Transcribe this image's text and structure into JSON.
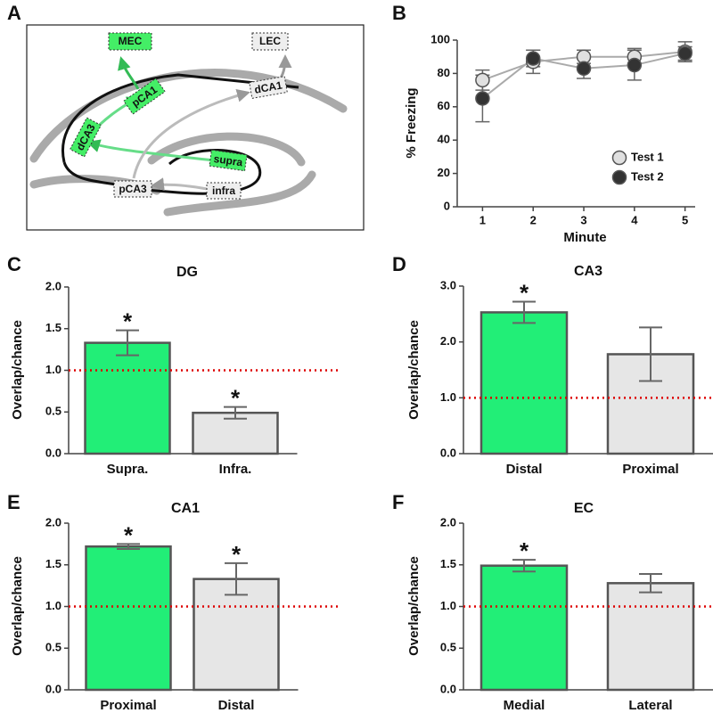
{
  "diagram": {
    "panel_label": "A",
    "labels": {
      "mec": "MEC",
      "lec": "LEC",
      "pca1": "pCA1",
      "dca1": "dCA1",
      "dca3": "dCA3",
      "pca3": "pCA3",
      "supra": "supra",
      "infra": "infra"
    }
  },
  "chart_data": [
    {
      "type": "line",
      "panel_label": "B",
      "x_label": "Minute",
      "y_label": "% Freezing",
      "x": [
        1,
        2,
        3,
        4,
        5
      ],
      "xlim": [
        0.5,
        5.2
      ],
      "xticks": [
        1,
        2,
        3,
        4,
        5
      ],
      "ylim": [
        0,
        100
      ],
      "yticks": [
        0,
        20,
        40,
        60,
        80,
        100
      ],
      "legend": "lower right",
      "series": [
        {
          "name": "Test 1",
          "color": "#e0e0e0",
          "values": [
            76,
            87,
            90,
            90,
            93
          ],
          "errors": [
            6,
            7,
            4,
            5,
            6
          ]
        },
        {
          "name": "Test 2",
          "color": "#333333",
          "values": [
            65,
            89,
            83,
            85,
            92
          ],
          "errors": [
            14,
            5,
            6,
            9,
            4
          ]
        }
      ]
    },
    {
      "type": "bar",
      "panel_label": "C",
      "title": "DG",
      "y_label": "Overlap/chance",
      "categories": [
        "Supra.",
        "Infra."
      ],
      "values": [
        1.33,
        0.49
      ],
      "errors": [
        0.15,
        0.07
      ],
      "significance": [
        "*",
        "*"
      ],
      "colors": [
        "#22ee77",
        "#e6e6e6"
      ],
      "ylim": [
        0,
        2
      ],
      "yticks": [
        {
          "value": 0,
          "label": "0.0"
        },
        0.5,
        {
          "value": 1,
          "label": "1.0"
        },
        1.5,
        {
          "value": 2,
          "label": "2.0"
        }
      ],
      "reference_line": {
        "value": 1,
        "color": "#dd0000"
      }
    },
    {
      "type": "bar",
      "panel_label": "D",
      "title": "CA3",
      "y_label": "Overlap/chance",
      "categories": [
        "Distal",
        "Proximal"
      ],
      "values": [
        2.53,
        1.78
      ],
      "errors": [
        0.19,
        0.48
      ],
      "significance": [
        "*",
        null
      ],
      "colors": [
        "#22ee77",
        "#e6e6e6"
      ],
      "ylim": [
        0,
        3
      ],
      "yticks": [
        {
          "value": 0,
          "label": "0.0"
        },
        {
          "value": 1,
          "label": "1.0"
        },
        {
          "value": 2,
          "label": "2.0"
        },
        {
          "value": 3,
          "label": "3.0"
        }
      ],
      "reference_line": {
        "value": 1,
        "color": "#dd0000"
      }
    },
    {
      "type": "bar",
      "panel_label": "E",
      "title": "CA1",
      "y_label": "Overlap/chance",
      "categories": [
        "Proximal",
        "Distal"
      ],
      "values": [
        1.72,
        1.33
      ],
      "errors": [
        0.03,
        0.19
      ],
      "significance": [
        "*",
        "*"
      ],
      "colors": [
        "#22ee77",
        "#e6e6e6"
      ],
      "ylim": [
        0,
        2
      ],
      "yticks": [
        {
          "value": 0,
          "label": "0.0"
        },
        0.5,
        {
          "value": 1,
          "label": "1.0"
        },
        1.5,
        {
          "value": 2,
          "label": "2.0"
        }
      ],
      "reference_line": {
        "value": 1,
        "color": "#dd0000"
      }
    },
    {
      "type": "bar",
      "panel_label": "F",
      "title": "EC",
      "y_label": "Overlap/chance",
      "categories": [
        "Medial",
        "Lateral"
      ],
      "values": [
        1.49,
        1.28
      ],
      "errors": [
        0.07,
        0.11
      ],
      "significance": [
        "*",
        null
      ],
      "colors": [
        "#22ee77",
        "#e6e6e6"
      ],
      "ylim": [
        0,
        2
      ],
      "yticks": [
        {
          "value": 0,
          "label": "0.0"
        },
        0.5,
        {
          "value": 1,
          "label": "1.0"
        },
        1.5,
        {
          "value": 2,
          "label": "2.0"
        }
      ],
      "reference_line": {
        "value": 1,
        "color": "#dd0000"
      }
    }
  ]
}
